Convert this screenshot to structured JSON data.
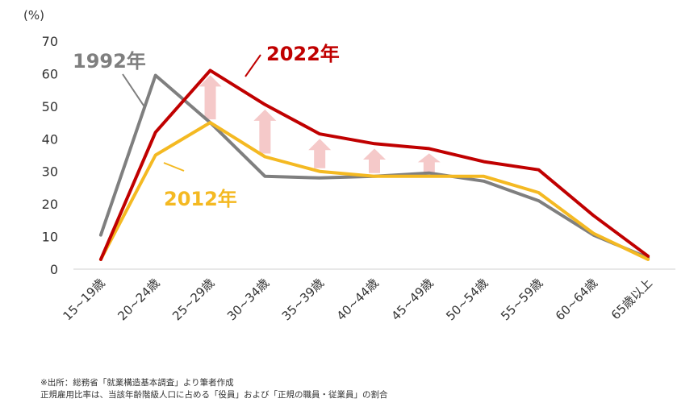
{
  "chart_data": {
    "type": "line",
    "ylabel": "(%)",
    "ylim": [
      0,
      70
    ],
    "yticks": [
      0,
      10,
      20,
      30,
      40,
      50,
      60,
      70
    ],
    "categories": [
      "15~19歳",
      "20~24歳",
      "25~29歳",
      "30~34歳",
      "35~39歳",
      "40~44歳",
      "45~49歳",
      "50~54歳",
      "55~59歳",
      "60~64歳",
      "65歳以上"
    ],
    "series": [
      {
        "name": "1992年",
        "color": "#7f7f7f",
        "values": [
          10.5,
          59.5,
          45.0,
          28.5,
          28.0,
          28.5,
          29.5,
          27.0,
          21.0,
          10.5,
          3.5
        ]
      },
      {
        "name": "2012年",
        "color": "#f4b922",
        "values": [
          3.0,
          35.0,
          45.0,
          34.5,
          30.0,
          28.5,
          28.5,
          28.5,
          23.5,
          11.0,
          3.0
        ]
      },
      {
        "name": "2022年",
        "color": "#c00000",
        "values": [
          3.0,
          42.0,
          61.0,
          50.5,
          41.5,
          38.5,
          37.0,
          33.0,
          30.5,
          16.5,
          4.0
        ]
      }
    ],
    "increase_arrows_color": "#f5c9c9",
    "grid": false,
    "legend": "inline labels"
  },
  "notes": [
    "※出所：総務省「就業構造基本調査」より筆者作成",
    "正規雇用比率は、当該年齢階級人口に占める「役員」および「正規の職員・従業員」の割合"
  ]
}
